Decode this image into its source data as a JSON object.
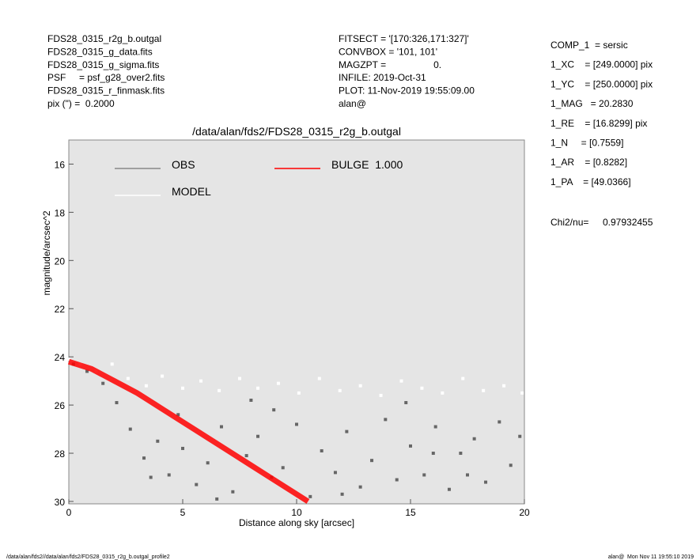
{
  "header": {
    "left": [
      "FDS28_0315_r2g_b.outgal",
      "FDS28_0315_g_data.fits",
      "FDS28_0315_g_sigma.fits",
      "PSF     = psf_g28_over2.fits",
      "FDS28_0315_r_finmask.fits",
      "pix (\") =  0.2000"
    ],
    "middle": [
      "FITSECT = '[170:326,171:327]'",
      "CONVBOX = '101, 101'",
      "MAGZPT =                  0.",
      "INFILE: 2019-Oct-31",
      "PLOT: 11-Nov-2019 19:55:09.00",
      "alan@"
    ],
    "right": [
      "COMP_1  = sersic",
      "1_XC    = [249.0000] pix",
      "1_YC    = [250.0000] pix",
      "1_MAG   = 20.2830",
      "1_RE    = [16.8299] pix",
      "1_N     = [0.7559]",
      "1_AR    = [0.8282]",
      "1_PA    = [49.0366]"
    ],
    "chi_label": "Chi2/nu=",
    "chi_value": "0.97932455"
  },
  "footer": {
    "left": "/data/alan/fds2//data/alan/fds2/FDS28_0315_r2g_b.outgal_profile2",
    "right": "alan@  Mon Nov 11 19:55:10 2019"
  },
  "chart_data": {
    "type": "scatter",
    "title": "/data/alan/fds2/FDS28_0315_r2g_b.outgal",
    "x_label": "Distance along sky [arcsec]",
    "y_label": "magnitude/arcsec^2",
    "xlim": [
      0,
      20
    ],
    "ylim": [
      15,
      30.1
    ],
    "y_inverted": true,
    "xticks": [
      0,
      5,
      10,
      15,
      20
    ],
    "yticks": [
      16,
      18,
      20,
      22,
      24,
      26,
      28,
      30
    ],
    "series": [
      {
        "name": "OBS",
        "color": "#666666",
        "style": "points",
        "x": [
          0.2,
          0.8,
          1.5,
          2.1,
          2.7,
          3.3,
          3.9,
          4.4,
          5.0,
          5.6,
          6.1,
          6.7,
          7.2,
          7.8,
          8.3,
          8.9,
          9.4,
          10.0,
          10.6,
          11.1,
          11.7,
          12.2,
          12.8,
          13.3,
          13.9,
          14.4,
          15.0,
          15.6,
          16.1,
          16.7,
          17.2,
          17.8,
          18.3,
          18.9,
          19.4,
          19.8,
          4.8,
          6.5,
          9.0,
          12.0,
          14.8,
          17.5,
          3.6,
          8.0,
          16.0
        ],
        "values": [
          24.3,
          24.6,
          25.1,
          25.9,
          27.0,
          28.2,
          27.5,
          28.9,
          27.8,
          29.3,
          28.4,
          26.9,
          29.6,
          28.1,
          27.3,
          29.0,
          28.6,
          26.8,
          29.8,
          27.9,
          28.8,
          27.1,
          29.4,
          28.3,
          26.6,
          29.1,
          27.7,
          28.9,
          26.9,
          29.5,
          28.0,
          27.4,
          29.2,
          26.7,
          28.5,
          27.3,
          26.4,
          29.9,
          26.2,
          29.7,
          25.9,
          28.9,
          29.0,
          25.8,
          28.0
        ]
      },
      {
        "name": "MODEL",
        "color": "#ffffff",
        "style": "points",
        "x": [
          0,
          0.5,
          1.2,
          1.9,
          2.6,
          3.4,
          4.1,
          5.0,
          5.8,
          6.6,
          7.5,
          8.3,
          9.2,
          10.1,
          11.0,
          11.9,
          12.8,
          13.7,
          14.6,
          15.5,
          16.4,
          17.3,
          18.2,
          19.1,
          19.9
        ],
        "values": [
          24.1,
          24.3,
          24.6,
          24.3,
          24.9,
          25.2,
          24.8,
          25.3,
          25.0,
          25.4,
          24.9,
          25.3,
          25.1,
          25.5,
          24.9,
          25.4,
          25.2,
          25.6,
          25.0,
          25.3,
          25.5,
          24.9,
          25.4,
          25.2,
          25.5
        ]
      },
      {
        "name": "BULGE  1.000",
        "color": "#ff0000",
        "style": "band",
        "x": [
          0,
          1,
          2,
          3,
          4,
          5,
          6,
          7,
          8,
          9,
          10,
          10.5
        ],
        "values": [
          24.2,
          24.5,
          25.0,
          25.5,
          26.1,
          26.7,
          27.3,
          27.9,
          28.5,
          29.1,
          29.7,
          30.0
        ]
      }
    ]
  }
}
